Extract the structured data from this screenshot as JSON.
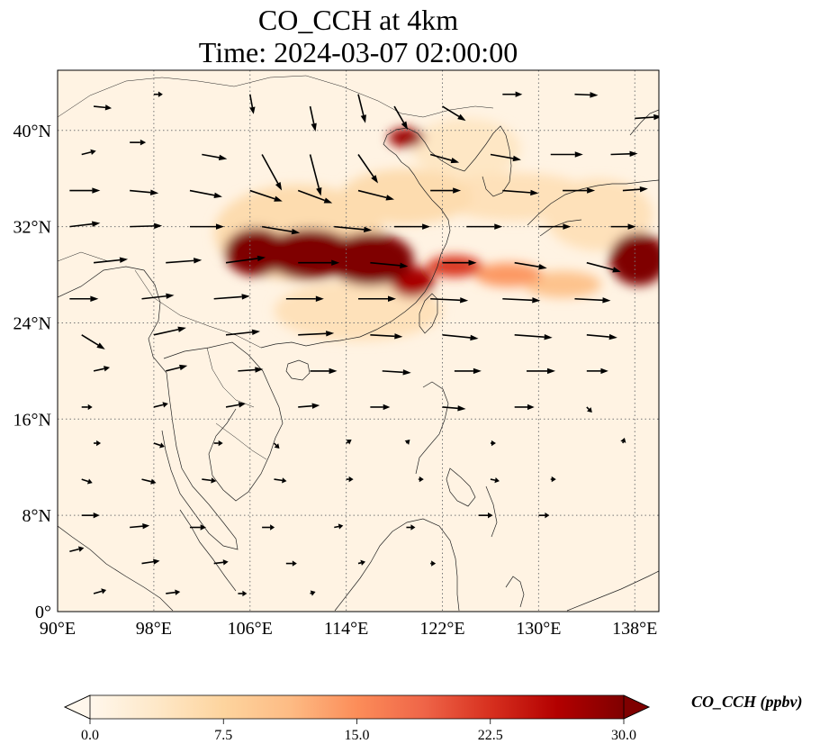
{
  "title": {
    "line1": "CO_CCH at 4km",
    "line2": "Time: 2024-03-07 02:00:00"
  },
  "map": {
    "lon_range": [
      90,
      140
    ],
    "lat_range": [
      0,
      45
    ],
    "lon_ticks": [
      {
        "value": 90,
        "label": "90°E"
      },
      {
        "value": 98,
        "label": "98°E"
      },
      {
        "value": 106,
        "label": "106°E"
      },
      {
        "value": 114,
        "label": "114°E"
      },
      {
        "value": 122,
        "label": "122°E"
      },
      {
        "value": 130,
        "label": "130°E"
      },
      {
        "value": 138,
        "label": "138°E"
      }
    ],
    "lat_ticks": [
      {
        "value": 0,
        "label": "0°"
      },
      {
        "value": 8,
        "label": "8°N"
      },
      {
        "value": 16,
        "label": "16°N"
      },
      {
        "value": 24,
        "label": "24°N"
      },
      {
        "value": 32,
        "label": "32°N"
      },
      {
        "value": 40,
        "label": "40°N"
      }
    ],
    "gridlines": true,
    "gridline_style": "dotted",
    "field_colormap": "OrRd",
    "plumes": [
      {
        "lon": 106.5,
        "lat": 29.9,
        "rlon": 2.6,
        "rlat": 2.0,
        "value": 30
      },
      {
        "lon": 111.0,
        "lat": 29.7,
        "rlon": 3.8,
        "rlat": 2.1,
        "value": 30
      },
      {
        "lon": 116.0,
        "lat": 29.3,
        "rlon": 3.6,
        "rlat": 2.2,
        "value": 30
      },
      {
        "lon": 119.5,
        "lat": 27.4,
        "rlon": 1.8,
        "rlat": 1.3,
        "value": 27
      },
      {
        "lon": 123.0,
        "lat": 28.7,
        "rlon": 2.3,
        "rlat": 0.9,
        "value": 22
      },
      {
        "lon": 127.5,
        "lat": 28.0,
        "rlon": 2.8,
        "rlat": 1.0,
        "value": 14
      },
      {
        "lon": 132.0,
        "lat": 27.2,
        "rlon": 3.2,
        "rlat": 1.1,
        "value": 10
      },
      {
        "lon": 138.3,
        "lat": 29.3,
        "rlon": 2.4,
        "rlat": 2.2,
        "value": 30
      },
      {
        "lon": 119.0,
        "lat": 39.4,
        "rlon": 1.5,
        "rlat": 0.8,
        "value": 28
      },
      {
        "lon": 119.0,
        "lat": 34.5,
        "rlon": 5.5,
        "rlat": 2.3,
        "value": 6
      },
      {
        "lon": 128.0,
        "lat": 34.5,
        "rlon": 6.5,
        "rlat": 2.0,
        "value": 5
      },
      {
        "lon": 110.0,
        "lat": 31.5,
        "rlon": 7.0,
        "rlat": 4.0,
        "value": 6
      },
      {
        "lon": 115.0,
        "lat": 25.0,
        "rlon": 7.0,
        "rlat": 2.5,
        "value": 5
      },
      {
        "lon": 124.0,
        "lat": 38.5,
        "rlon": 4.5,
        "rlat": 2.5,
        "value": 4
      },
      {
        "lon": 135.0,
        "lat": 33.0,
        "rlon": 4.5,
        "rlat": 3.0,
        "value": 5
      }
    ],
    "wind_arrows": [
      {
        "lon": 93,
        "lat": 42,
        "u": 2,
        "v": -0.2
      },
      {
        "lon": 98,
        "lat": 43,
        "u": 1,
        "v": 0
      },
      {
        "lon": 106,
        "lat": 43,
        "u": 0.4,
        "v": -2.2
      },
      {
        "lon": 111,
        "lat": 42,
        "u": 0.6,
        "v": -2.8
      },
      {
        "lon": 115,
        "lat": 43,
        "u": 0.8,
        "v": -3.2
      },
      {
        "lon": 118,
        "lat": 42,
        "u": 1.5,
        "v": -2.6
      },
      {
        "lon": 122,
        "lat": 42,
        "u": 2.6,
        "v": -1.6
      },
      {
        "lon": 127,
        "lat": 43,
        "u": 2.2,
        "v": 0
      },
      {
        "lon": 133,
        "lat": 43,
        "u": 2.6,
        "v": -0.1
      },
      {
        "lon": 138,
        "lat": 41,
        "u": 3,
        "v": 0.2
      },
      {
        "lon": 92,
        "lat": 38,
        "u": 1.6,
        "v": 0.4
      },
      {
        "lon": 96,
        "lat": 39,
        "u": 1.8,
        "v": 0
      },
      {
        "lon": 102,
        "lat": 38,
        "u": 2.8,
        "v": -0.5
      },
      {
        "lon": 107,
        "lat": 38,
        "u": 2.2,
        "v": -4
      },
      {
        "lon": 111,
        "lat": 38,
        "u": 1.2,
        "v": -4.6
      },
      {
        "lon": 115,
        "lat": 38,
        "u": 2.2,
        "v": -3.2
      },
      {
        "lon": 121,
        "lat": 38,
        "u": 3.2,
        "v": -0.9
      },
      {
        "lon": 126,
        "lat": 38,
        "u": 3.4,
        "v": -0.6
      },
      {
        "lon": 131,
        "lat": 38,
        "u": 3.6,
        "v": 0
      },
      {
        "lon": 136,
        "lat": 38,
        "u": 3,
        "v": 0.1
      },
      {
        "lon": 91,
        "lat": 35,
        "u": 3.4,
        "v": 0
      },
      {
        "lon": 96,
        "lat": 35,
        "u": 3.2,
        "v": -0.3
      },
      {
        "lon": 101,
        "lat": 35,
        "u": 3.6,
        "v": -0.7
      },
      {
        "lon": 106,
        "lat": 35,
        "u": 3.6,
        "v": -1.2
      },
      {
        "lon": 110,
        "lat": 35,
        "u": 3.8,
        "v": -1.4
      },
      {
        "lon": 115,
        "lat": 35,
        "u": 4,
        "v": -1
      },
      {
        "lon": 121,
        "lat": 35,
        "u": 3.4,
        "v": 0
      },
      {
        "lon": 127,
        "lat": 35,
        "u": 4,
        "v": -0.3
      },
      {
        "lon": 132,
        "lat": 35,
        "u": 3.6,
        "v": 0
      },
      {
        "lon": 137,
        "lat": 35,
        "u": 2.8,
        "v": 0.2
      },
      {
        "lon": 91,
        "lat": 32,
        "u": 3.4,
        "v": 0.4
      },
      {
        "lon": 96,
        "lat": 32,
        "u": 3.6,
        "v": 0.1
      },
      {
        "lon": 101,
        "lat": 32,
        "u": 3.8,
        "v": 0
      },
      {
        "lon": 107,
        "lat": 32,
        "u": 4.2,
        "v": -0.7
      },
      {
        "lon": 113,
        "lat": 32,
        "u": 4.2,
        "v": -0.4
      },
      {
        "lon": 118,
        "lat": 32,
        "u": 4,
        "v": 0
      },
      {
        "lon": 124,
        "lat": 32,
        "u": 4,
        "v": 0
      },
      {
        "lon": 130,
        "lat": 32,
        "u": 3.6,
        "v": 0
      },
      {
        "lon": 136,
        "lat": 32,
        "u": 2.8,
        "v": 0
      },
      {
        "lon": 93,
        "lat": 29,
        "u": 3.8,
        "v": 0.4
      },
      {
        "lon": 99,
        "lat": 29,
        "u": 4,
        "v": 0.3
      },
      {
        "lon": 104,
        "lat": 29,
        "u": 4.4,
        "v": 0.6
      },
      {
        "lon": 110,
        "lat": 29,
        "u": 4.6,
        "v": 0
      },
      {
        "lon": 116,
        "lat": 29,
        "u": 4.2,
        "v": -0.4
      },
      {
        "lon": 122,
        "lat": 29,
        "u": 3.8,
        "v": 0
      },
      {
        "lon": 128,
        "lat": 29,
        "u": 3.6,
        "v": -0.6
      },
      {
        "lon": 134,
        "lat": 29,
        "u": 3.8,
        "v": -1
      },
      {
        "lon": 91,
        "lat": 26,
        "u": 3.2,
        "v": 0
      },
      {
        "lon": 97,
        "lat": 26,
        "u": 3.6,
        "v": 0.4
      },
      {
        "lon": 103,
        "lat": 26,
        "u": 4,
        "v": 0.3
      },
      {
        "lon": 109,
        "lat": 26,
        "u": 4.2,
        "v": 0
      },
      {
        "lon": 115,
        "lat": 26,
        "u": 4.2,
        "v": 0
      },
      {
        "lon": 121,
        "lat": 26,
        "u": 4.2,
        "v": -0.2
      },
      {
        "lon": 127,
        "lat": 26,
        "u": 4.2,
        "v": -0.2
      },
      {
        "lon": 133,
        "lat": 26,
        "u": 4,
        "v": -0.2
      },
      {
        "lon": 92,
        "lat": 23,
        "u": 2.6,
        "v": -1.6
      },
      {
        "lon": 98,
        "lat": 23,
        "u": 3.6,
        "v": 0.8
      },
      {
        "lon": 104,
        "lat": 23,
        "u": 3.8,
        "v": 0.4
      },
      {
        "lon": 110,
        "lat": 23,
        "u": 4,
        "v": 0.2
      },
      {
        "lon": 116,
        "lat": 23,
        "u": 3.6,
        "v": -0.2
      },
      {
        "lon": 122,
        "lat": 23,
        "u": 4,
        "v": -0.4
      },
      {
        "lon": 128,
        "lat": 23,
        "u": 4.2,
        "v": -0.3
      },
      {
        "lon": 134,
        "lat": 23,
        "u": 3.4,
        "v": -0.3
      },
      {
        "lon": 93,
        "lat": 20,
        "u": 1.8,
        "v": 0.4
      },
      {
        "lon": 99,
        "lat": 20,
        "u": 2.4,
        "v": 0.6
      },
      {
        "lon": 105,
        "lat": 20,
        "u": 2.8,
        "v": 0.2
      },
      {
        "lon": 111,
        "lat": 20,
        "u": 3,
        "v": 0
      },
      {
        "lon": 117,
        "lat": 20,
        "u": 3.2,
        "v": -0.2
      },
      {
        "lon": 123,
        "lat": 20,
        "u": 3,
        "v": 0
      },
      {
        "lon": 129,
        "lat": 20,
        "u": 3.2,
        "v": 0
      },
      {
        "lon": 134,
        "lat": 20,
        "u": 2.4,
        "v": 0
      },
      {
        "lon": 92,
        "lat": 17,
        "u": 1.2,
        "v": 0
      },
      {
        "lon": 98,
        "lat": 17,
        "u": 1.6,
        "v": 0.4
      },
      {
        "lon": 104,
        "lat": 17,
        "u": 2.2,
        "v": 0.4
      },
      {
        "lon": 110,
        "lat": 17,
        "u": 2.4,
        "v": 0.2
      },
      {
        "lon": 116,
        "lat": 17,
        "u": 2.2,
        "v": 0
      },
      {
        "lon": 122,
        "lat": 17,
        "u": 2.6,
        "v": -0.2
      },
      {
        "lon": 128,
        "lat": 17,
        "u": 2.2,
        "v": 0
      },
      {
        "lon": 134,
        "lat": 17,
        "u": 0.6,
        "v": -0.6
      },
      {
        "lon": 93,
        "lat": 14,
        "u": 0.8,
        "v": 0
      },
      {
        "lon": 98,
        "lat": 14,
        "u": 1.2,
        "v": -0.4
      },
      {
        "lon": 103,
        "lat": 14,
        "u": 1,
        "v": 0
      },
      {
        "lon": 108,
        "lat": 14,
        "u": 0.6,
        "v": -0.6
      },
      {
        "lon": 114,
        "lat": 14,
        "u": 0.6,
        "v": 0.4
      },
      {
        "lon": 119,
        "lat": 14,
        "u": 0.4,
        "v": 0.4
      },
      {
        "lon": 126,
        "lat": 14,
        "u": 0.6,
        "v": 0
      },
      {
        "lon": 137,
        "lat": 14,
        "u": 0.2,
        "v": 0.6
      },
      {
        "lon": 92,
        "lat": 11,
        "u": 1.2,
        "v": -0.4
      },
      {
        "lon": 97,
        "lat": 11,
        "u": 1.6,
        "v": -0.4
      },
      {
        "lon": 102,
        "lat": 11,
        "u": 1.6,
        "v": -0.2
      },
      {
        "lon": 108,
        "lat": 11,
        "u": 1.4,
        "v": -0.2
      },
      {
        "lon": 114,
        "lat": 11,
        "u": 0.8,
        "v": 0
      },
      {
        "lon": 120,
        "lat": 11,
        "u": 0.6,
        "v": 0
      },
      {
        "lon": 126,
        "lat": 11,
        "u": 1,
        "v": -0.2
      },
      {
        "lon": 131,
        "lat": 11,
        "u": 0.6,
        "v": 0
      },
      {
        "lon": 92,
        "lat": 8,
        "u": 2,
        "v": 0
      },
      {
        "lon": 96,
        "lat": 7,
        "u": 2.2,
        "v": 0.2
      },
      {
        "lon": 101,
        "lat": 7,
        "u": 1.8,
        "v": 0
      },
      {
        "lon": 107,
        "lat": 7,
        "u": 1.4,
        "v": 0
      },
      {
        "lon": 113,
        "lat": 7,
        "u": 1,
        "v": 0.2
      },
      {
        "lon": 119,
        "lat": 7,
        "u": 1,
        "v": 0
      },
      {
        "lon": 125,
        "lat": 8,
        "u": 1.6,
        "v": 0
      },
      {
        "lon": 130,
        "lat": 8,
        "u": 1.2,
        "v": 0
      },
      {
        "lon": 91,
        "lat": 5,
        "u": 1.6,
        "v": 0.4
      },
      {
        "lon": 97,
        "lat": 4,
        "u": 2,
        "v": 0.3
      },
      {
        "lon": 103,
        "lat": 4,
        "u": 1.6,
        "v": 0.2
      },
      {
        "lon": 109,
        "lat": 4,
        "u": 1.2,
        "v": 0
      },
      {
        "lon": 115,
        "lat": 4,
        "u": 0.8,
        "v": 0.2
      },
      {
        "lon": 121,
        "lat": 4,
        "u": 0.6,
        "v": 0
      },
      {
        "lon": 93,
        "lat": 1.5,
        "u": 1.4,
        "v": 0.4
      },
      {
        "lon": 99,
        "lat": 1.5,
        "u": 1.6,
        "v": 0.2
      },
      {
        "lon": 105,
        "lat": 1.5,
        "u": 1,
        "v": 0
      },
      {
        "lon": 111,
        "lat": 1.5,
        "u": 0.6,
        "v": 0.2
      }
    ]
  },
  "colorbar": {
    "colormap": "OrRd",
    "colors": [
      "#fff7ec",
      "#fee8c8",
      "#fdd49e",
      "#fdbb84",
      "#fc8d59",
      "#ef6548",
      "#d7301f",
      "#b30000",
      "#7f0000"
    ],
    "min": 0.0,
    "max": 30.0,
    "extend": "both",
    "ticks": [
      {
        "value": 0.0,
        "label": "0.0"
      },
      {
        "value": 7.5,
        "label": "7.5"
      },
      {
        "value": 15.0,
        "label": "15.0"
      },
      {
        "value": 22.5,
        "label": "22.5"
      },
      {
        "value": 30.0,
        "label": "30.0"
      }
    ],
    "unit_label": "CO_CCH (ppbv)"
  }
}
